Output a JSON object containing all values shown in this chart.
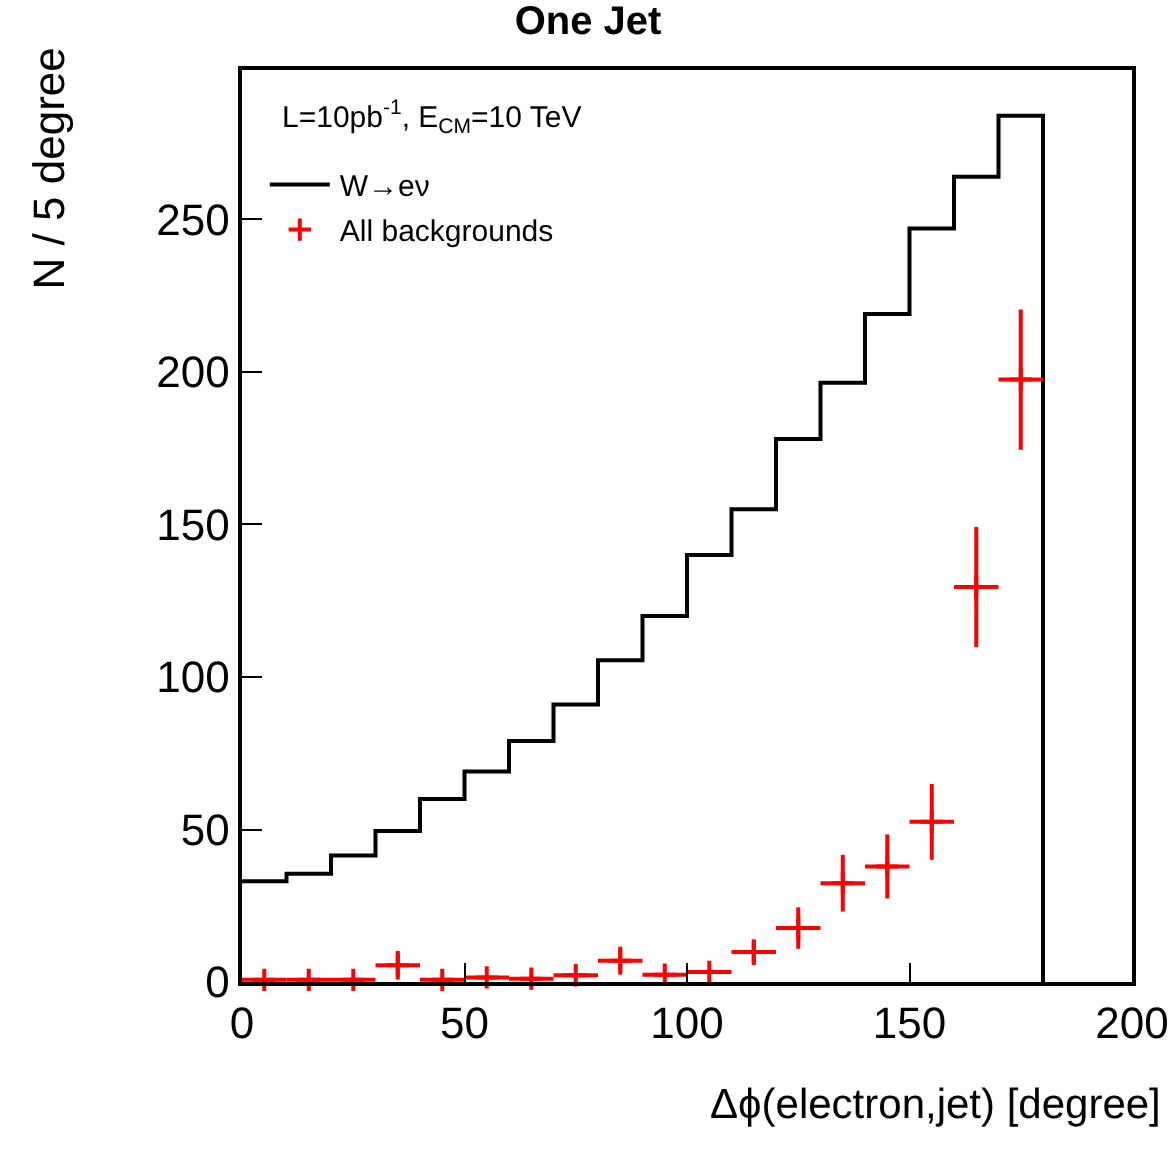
{
  "chart_data": {
    "type": "histogram",
    "title": "One Jet",
    "xlabel": "Δϕ(electron,jet) [degree]",
    "ylabel": "N / 5 degree",
    "annotations": [
      "L=10pb$^{-1}$, E$_{CM}$=10 TeV"
    ],
    "bins": [
      0,
      10,
      20,
      30,
      40,
      50,
      60,
      70,
      80,
      90,
      100,
      110,
      120,
      130,
      140,
      150,
      160,
      170,
      180
    ],
    "series": [
      {
        "name": "W→eν",
        "color": "#000000",
        "values": [
          33,
          35.5,
          41.5,
          49.5,
          60,
          69,
          79,
          91,
          105.5,
          120,
          140,
          155,
          178,
          196.5,
          219,
          247,
          264,
          284
        ]
      },
      {
        "name": "All backgrounds",
        "color": "#ff0000",
        "type": "scatter",
        "marker": "cross",
        "x": [
          5,
          15,
          25,
          35,
          45,
          55,
          65,
          75,
          85,
          95,
          105,
          115,
          125,
          135,
          145,
          155,
          165,
          175
        ],
        "values": [
          0.7,
          0.7,
          0.7,
          5.5,
          0.7,
          1.5,
          1.1,
          2.2,
          7,
          2.4,
          3.3,
          9.8,
          17.7,
          32.4,
          37.9,
          52.5,
          129.5,
          197.5
        ],
        "errors": [
          null,
          null,
          null,
          4.7,
          null,
          null,
          null,
          null,
          4.6,
          null,
          null,
          4.2,
          6.8,
          9.3,
          10.5,
          12.4,
          19.7,
          23
        ],
        "xerrors": [
          5,
          5,
          5,
          5,
          5,
          5,
          5,
          5,
          5,
          5,
          5,
          5,
          5,
          5,
          5,
          5,
          5,
          5
        ]
      }
    ],
    "xlim": [
      0,
      200
    ],
    "xticks": [
      0,
      50,
      100,
      150,
      200
    ],
    "ylim": [
      0,
      299
    ],
    "yticks": [
      0,
      50,
      100,
      150,
      200,
      250
    ],
    "grid": false,
    "legend": "top left"
  }
}
